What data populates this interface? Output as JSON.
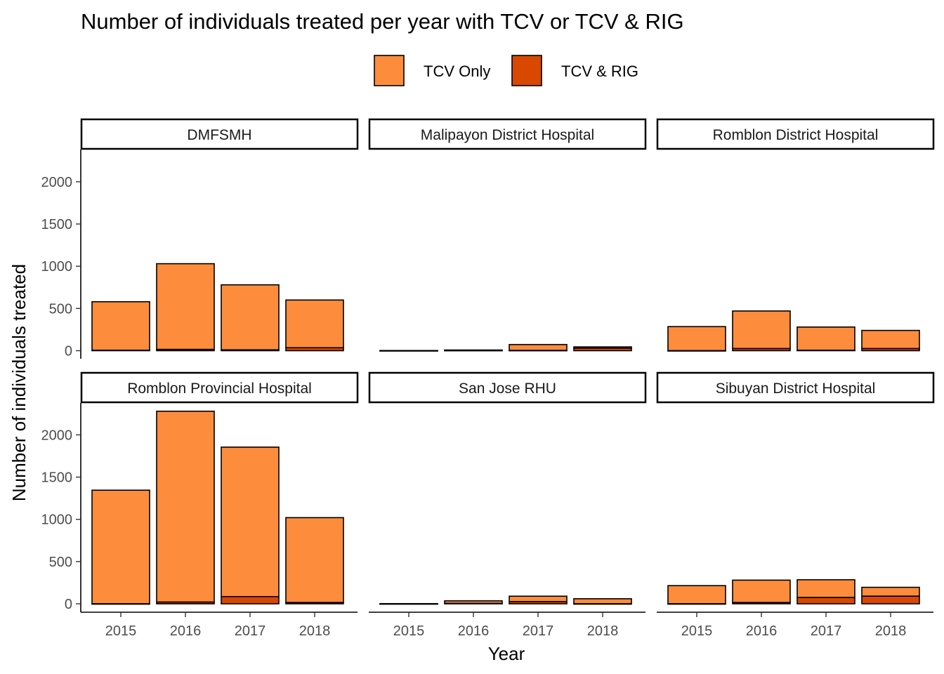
{
  "chart_data": {
    "type": "bar",
    "title": "Number of individuals treated per year with TCV or TCV & RIG",
    "xlabel": "Year",
    "ylabel": "Number of individuals treated",
    "categories": [
      "2015",
      "2016",
      "2017",
      "2018"
    ],
    "ylim": [
      0,
      2400
    ],
    "yticks": [
      0,
      500,
      1000,
      1500,
      2000
    ],
    "grid": false,
    "legend": {
      "position": "top",
      "items": [
        {
          "name": "TCV Only",
          "color": "#FD8D3C"
        },
        {
          "name": "TCV & RIG",
          "color": "#D94801"
        }
      ]
    },
    "panels": [
      {
        "name": "DMFSMH",
        "series": [
          {
            "name": "TCV Only",
            "values": [
              575,
              1015,
              770,
              565
            ]
          },
          {
            "name": "TCV & RIG",
            "values": [
              5,
              15,
              10,
              35
            ]
          }
        ]
      },
      {
        "name": "Malipayon District Hospital",
        "series": [
          {
            "name": "TCV Only",
            "values": [
              2,
              5,
              70,
              15
            ]
          },
          {
            "name": "TCV & RIG",
            "values": [
              0,
              3,
              3,
              30
            ]
          }
        ]
      },
      {
        "name": "Romblon District Hospital",
        "series": [
          {
            "name": "TCV Only",
            "values": [
              285,
              445,
              275,
              215
            ]
          },
          {
            "name": "TCV & RIG",
            "values": [
              0,
              25,
              5,
              25
            ]
          }
        ]
      },
      {
        "name": "Romblon Provincial Hospital",
        "series": [
          {
            "name": "TCV Only",
            "values": [
              1345,
              2260,
              1770,
              1005
            ]
          },
          {
            "name": "TCV & RIG",
            "values": [
              0,
              20,
              85,
              15
            ]
          }
        ]
      },
      {
        "name": "San Jose RHU",
        "series": [
          {
            "name": "TCV Only",
            "values": [
              2,
              30,
              65,
              60
            ]
          },
          {
            "name": "TCV & RIG",
            "values": [
              0,
              5,
              25,
              0
            ]
          }
        ]
      },
      {
        "name": "Sibuyan District Hospital",
        "series": [
          {
            "name": "TCV Only",
            "values": [
              215,
              265,
              210,
              105
            ]
          },
          {
            "name": "TCV & RIG",
            "values": [
              0,
              15,
              75,
              90
            ]
          }
        ]
      }
    ]
  }
}
